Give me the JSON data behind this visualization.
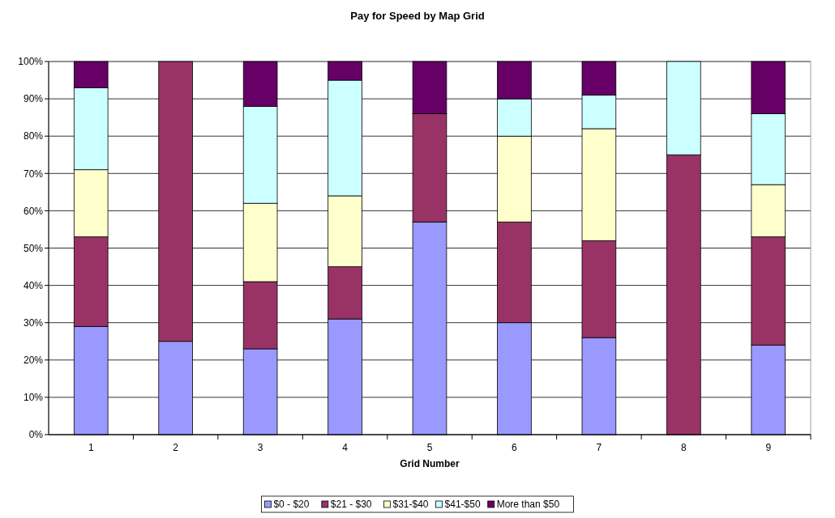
{
  "chart_data": {
    "type": "bar",
    "stacked": true,
    "title": "Pay for Speed by Map Grid",
    "xlabel": "Grid Number",
    "categories": [
      "1",
      "2",
      "3",
      "4",
      "5",
      "6",
      "7",
      "8",
      "9"
    ],
    "series": [
      {
        "name": "$0 - $20",
        "color": "#9999ff",
        "values": [
          29,
          25,
          23,
          31,
          57,
          30,
          26,
          0,
          24
        ]
      },
      {
        "name": "$21 - $30",
        "color": "#993366",
        "values": [
          24,
          75,
          18,
          14,
          29,
          27,
          26,
          75,
          29
        ]
      },
      {
        "name": "$31-$40",
        "color": "#ffffcc",
        "values": [
          18,
          0,
          21,
          19,
          0,
          23,
          30,
          0,
          14
        ]
      },
      {
        "name": "$41-$50",
        "color": "#ccffff",
        "values": [
          22,
          0,
          26,
          31,
          0,
          10,
          9,
          25,
          19
        ]
      },
      {
        "name": "More than $50",
        "color": "#660066",
        "values": [
          7,
          0,
          12,
          5,
          14,
          10,
          9,
          0,
          14
        ]
      }
    ],
    "ylim": [
      0,
      100
    ],
    "yticks": [
      {
        "value": 0,
        "label": "0%"
      },
      {
        "value": 10,
        "label": "10%"
      },
      {
        "value": 20,
        "label": "20%"
      },
      {
        "value": 30,
        "label": "30%"
      },
      {
        "value": 40,
        "label": "40%"
      },
      {
        "value": 50,
        "label": "50%"
      },
      {
        "value": 60,
        "label": "60%"
      },
      {
        "value": 70,
        "label": "70%"
      },
      {
        "value": 80,
        "label": "80%"
      },
      {
        "value": 90,
        "label": "90%"
      },
      {
        "value": 100,
        "label": "100%"
      }
    ],
    "grid": "y",
    "legend": "bottom"
  }
}
